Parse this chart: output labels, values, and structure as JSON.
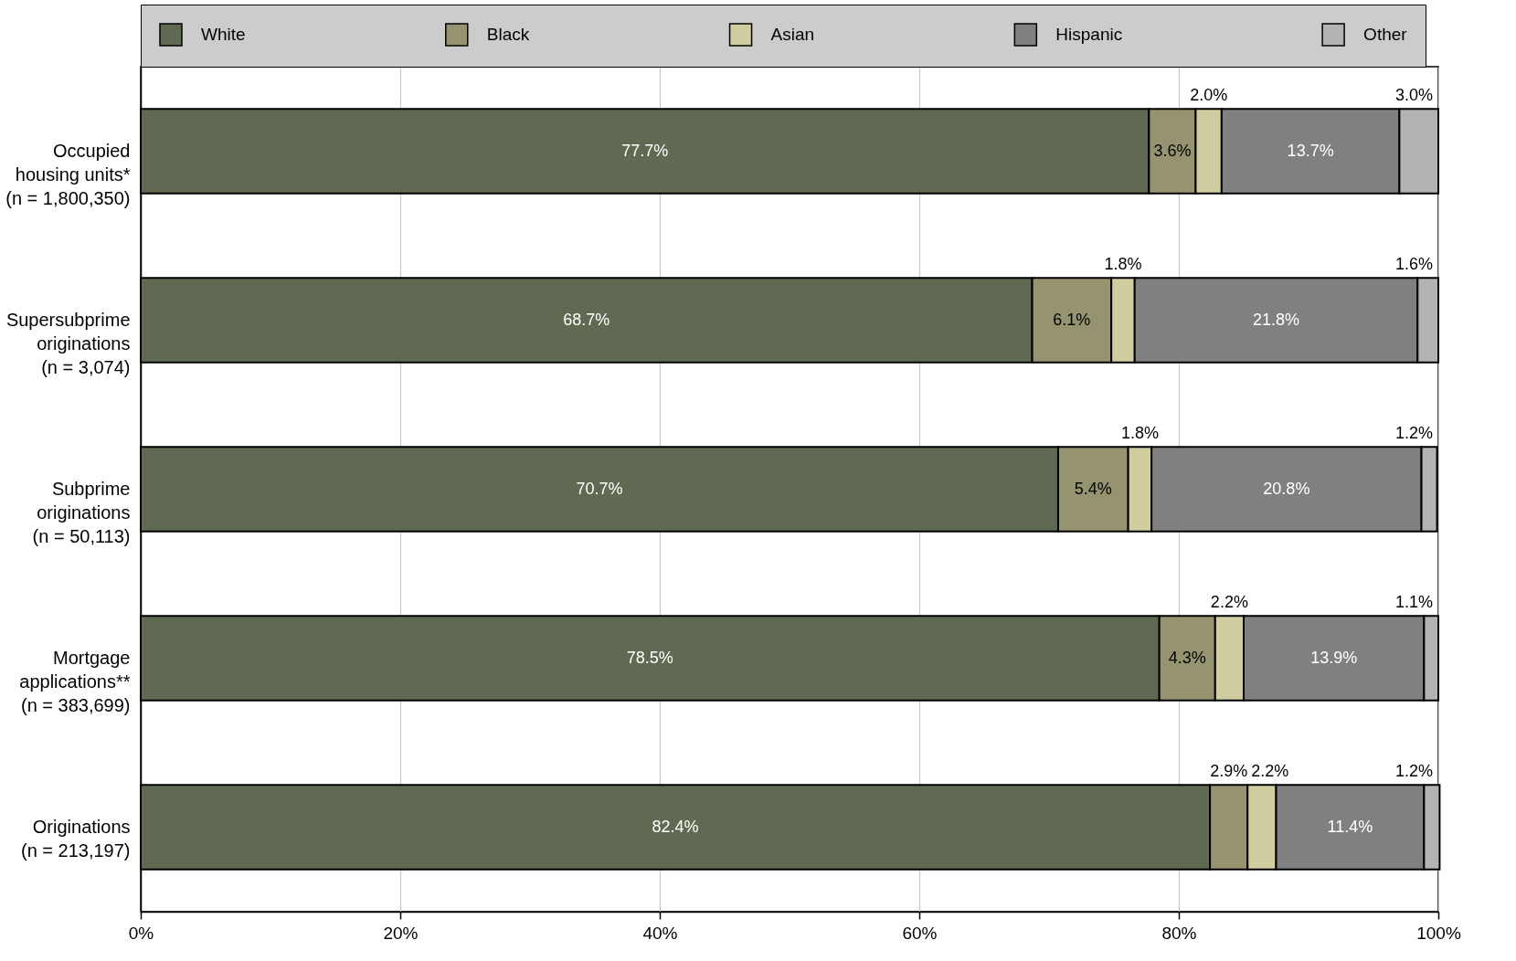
{
  "chart_data": {
    "type": "bar",
    "orientation": "horizontal",
    "stacked": true,
    "categories": [
      "Occupied\nhousing units*\n(n = 1,800,350)",
      "Supersubprime\noriginations\n(n = 3,074)",
      "Subprime\noriginations\n(n = 50,113)",
      "Mortgage\napplications**\n(n = 383,699)",
      "Originations\n(n = 213,197)"
    ],
    "series": [
      {
        "name": "White",
        "color": "#606a53",
        "values": [
          77.7,
          68.7,
          70.7,
          78.5,
          82.4
        ],
        "value_labels": [
          "77.7%",
          "68.7%",
          "70.7%",
          "78.5%",
          "82.4%"
        ]
      },
      {
        "name": "Black",
        "color": "#959370",
        "values": [
          3.6,
          6.1,
          5.4,
          4.3,
          2.9
        ],
        "value_labels": [
          "3.6%",
          "6.1%",
          "5.4%",
          "4.3%",
          "2.9%"
        ]
      },
      {
        "name": "Asian",
        "color": "#d0cea0",
        "values": [
          2.0,
          1.8,
          1.8,
          2.2,
          2.2
        ],
        "value_labels": [
          "2.0%",
          "1.8%",
          "1.8%",
          "2.2%",
          "2.2%"
        ]
      },
      {
        "name": "Hispanic",
        "color": "#808080",
        "values": [
          13.7,
          21.8,
          20.8,
          13.9,
          11.4
        ],
        "value_labels": [
          "13.7%",
          "21.8%",
          "20.8%",
          "13.9%",
          "11.4%"
        ]
      },
      {
        "name": "Other",
        "color": "#b3b3b3",
        "values": [
          3.0,
          1.6,
          1.2,
          1.1,
          1.2
        ],
        "value_labels": [
          "3.0%",
          "1.6%",
          "1.2%",
          "1.1%",
          "1.2%"
        ]
      }
    ],
    "xlim": [
      0,
      100
    ],
    "xticks": [
      {
        "value": 0,
        "label": "0%"
      },
      {
        "value": 20,
        "label": "20%"
      },
      {
        "value": 40,
        "label": "40%"
      },
      {
        "value": 60,
        "label": "60%"
      },
      {
        "value": 80,
        "label": "80%"
      },
      {
        "value": 100,
        "label": "100%"
      }
    ],
    "grid": "x",
    "legend": "top"
  }
}
